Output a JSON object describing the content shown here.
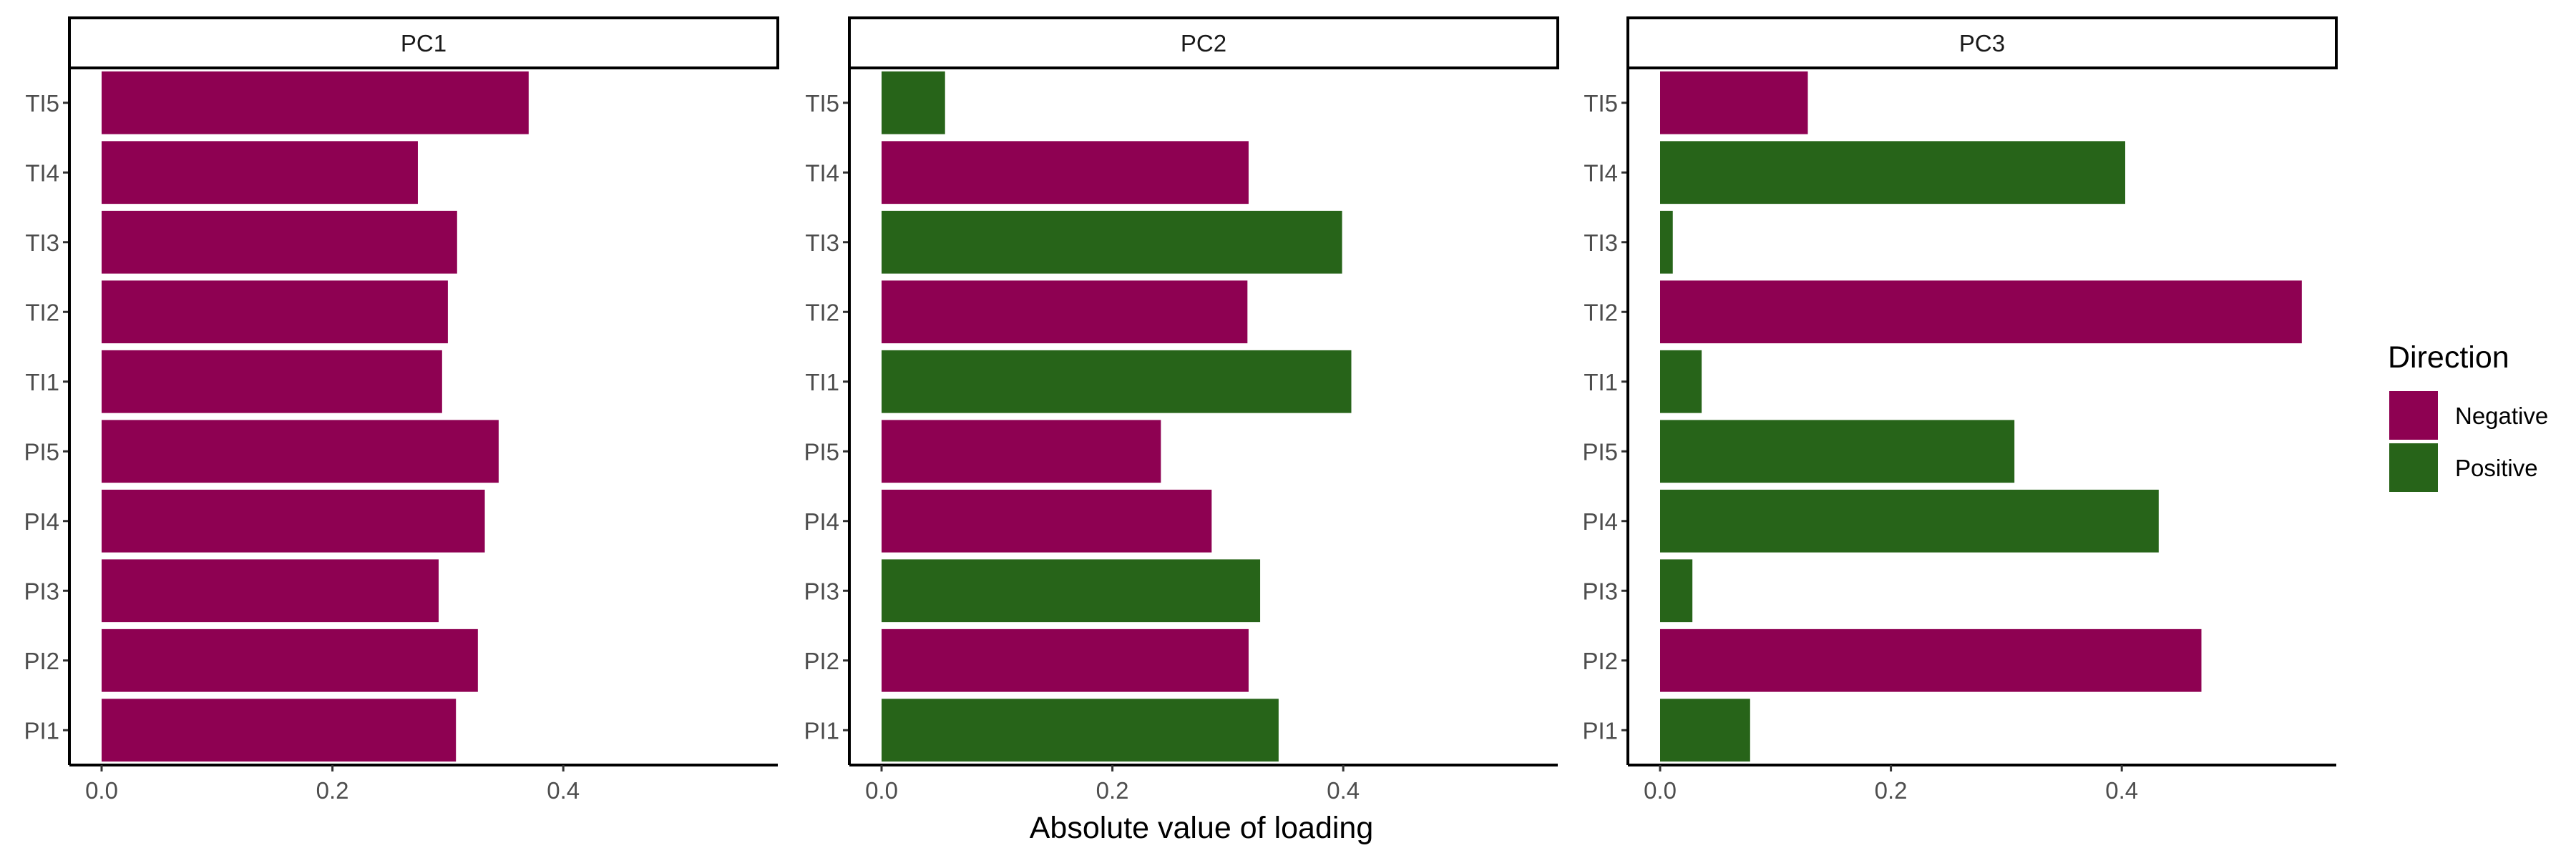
{
  "chart_data": {
    "type": "bar",
    "orientation": "horizontal",
    "xlabel": "Absolute value of loading",
    "ylabel": "",
    "xlim": [
      0,
      0.58
    ],
    "x_ticks": [
      "0.0",
      "0.2",
      "0.4"
    ],
    "x_tick_values": [
      0,
      0.2,
      0.4
    ],
    "categories": [
      "TI5",
      "TI4",
      "TI3",
      "TI2",
      "TI1",
      "PI5",
      "PI4",
      "PI3",
      "PI2",
      "PI1"
    ],
    "grid": false,
    "legend": {
      "title": "Direction",
      "placement": "right",
      "entries": [
        {
          "label": "Negative",
          "color": "#8E0152"
        },
        {
          "label": "Positive",
          "color": "#276419"
        }
      ]
    },
    "panels": [
      {
        "name": "PC1",
        "values": [
          0.37,
          0.274,
          0.308,
          0.3,
          0.295,
          0.344,
          0.332,
          0.292,
          0.326,
          0.307
        ],
        "direction": [
          "Negative",
          "Negative",
          "Negative",
          "Negative",
          "Negative",
          "Negative",
          "Negative",
          "Negative",
          "Negative",
          "Negative"
        ]
      },
      {
        "name": "PC2",
        "values": [
          0.055,
          0.318,
          0.399,
          0.317,
          0.407,
          0.242,
          0.286,
          0.328,
          0.318,
          0.344
        ],
        "direction": [
          "Positive",
          "Negative",
          "Positive",
          "Negative",
          "Positive",
          "Negative",
          "Negative",
          "Positive",
          "Negative",
          "Positive"
        ]
      },
      {
        "name": "PC3",
        "values": [
          0.128,
          0.403,
          0.011,
          0.556,
          0.036,
          0.307,
          0.432,
          0.028,
          0.469,
          0.078
        ],
        "direction": [
          "Negative",
          "Positive",
          "Positive",
          "Negative",
          "Positive",
          "Positive",
          "Positive",
          "Positive",
          "Negative",
          "Positive"
        ]
      }
    ]
  }
}
